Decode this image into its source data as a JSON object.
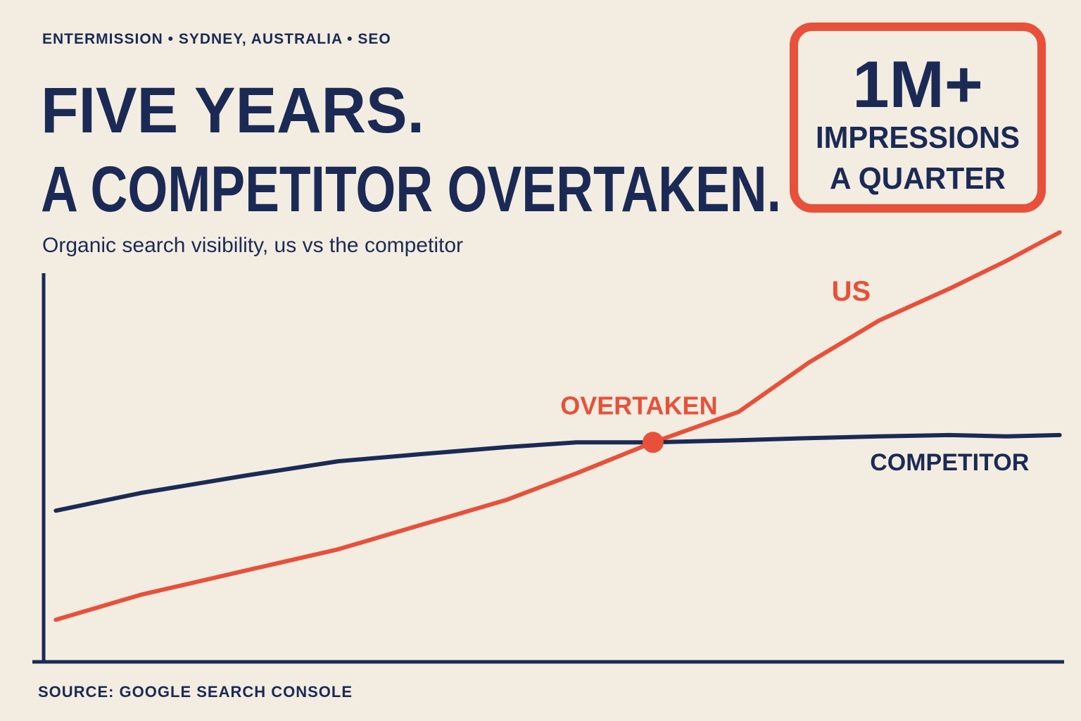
{
  "chart_data": {
    "type": "line",
    "kicker": "ENTERMISSION • SYDNEY, AUSTRALIA • SEO",
    "title": [
      "FIVE YEARS.",
      "A COMPETITOR OVERTAKEN."
    ],
    "subtitle": "Organic search visibility, us vs the competitor",
    "stamp": [
      "1M+",
      "IMPRESSIONS",
      "A QUARTER"
    ],
    "annotation": "OVERTAKEN",
    "source": "SOURCE: GOOGLE SEARCH CONSOLE",
    "x": [
      1.2,
      9.5,
      19.9,
      28.9,
      37.2,
      45.4,
      52.3,
      59.8,
      68.2,
      75.1,
      82,
      88.9,
      94.5,
      99.7
    ],
    "xlim": [
      0,
      100
    ],
    "ylim": [
      0,
      100
    ],
    "series": [
      {
        "name": "US",
        "color": "#e8503a",
        "values": [
          9.8,
          15.6,
          21.3,
          26.2,
          32,
          37.7,
          43.9,
          51.1,
          58.2,
          69.7,
          79.5,
          86.9,
          93.4,
          100
        ]
      },
      {
        "name": "COMPETITOR",
        "color": "#1b2a55",
        "values": [
          35.2,
          39.3,
          43.4,
          46.7,
          48.4,
          50,
          51.1,
          51.1,
          51.6,
          52.1,
          52.5,
          52.8,
          52.5,
          52.8
        ]
      }
    ]
  }
}
